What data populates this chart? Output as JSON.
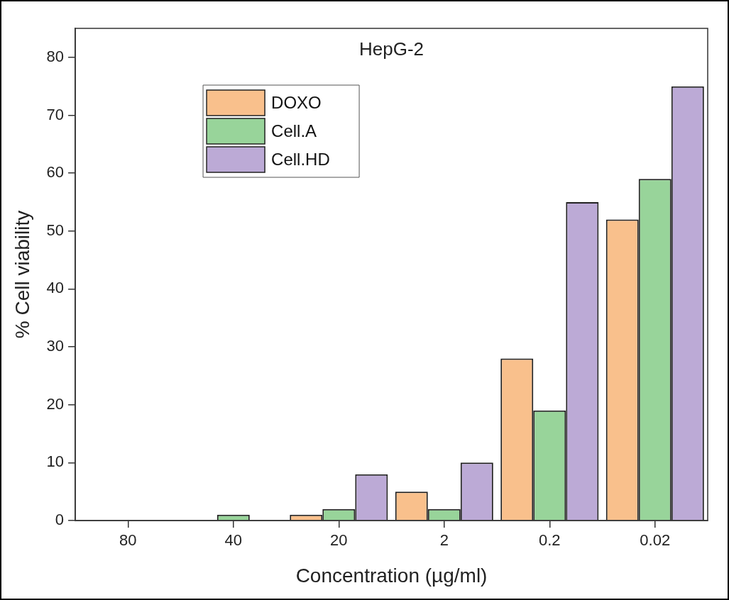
{
  "chart_data": {
    "type": "bar",
    "title": "HepG-2",
    "xlabel": "Concentration (µg/ml)",
    "ylabel": "% Cell viability",
    "categories": [
      "80",
      "40",
      "20",
      "2",
      "0.2",
      "0.02"
    ],
    "series": [
      {
        "name": "DOXO",
        "color": "#f9c08c",
        "values": [
          0,
          0,
          1,
          5,
          28,
          52
        ]
      },
      {
        "name": "Cell.A",
        "color": "#98d49a",
        "values": [
          0,
          1,
          2,
          2,
          19,
          59
        ]
      },
      {
        "name": "Cell.HD",
        "color": "#bcaad6",
        "values": [
          0,
          0,
          8,
          10,
          55,
          75
        ]
      }
    ],
    "ylim": [
      0,
      85
    ],
    "yticks": [
      0,
      10,
      20,
      30,
      40,
      50,
      60,
      70,
      80
    ],
    "grid": false,
    "legend": "top left"
  }
}
